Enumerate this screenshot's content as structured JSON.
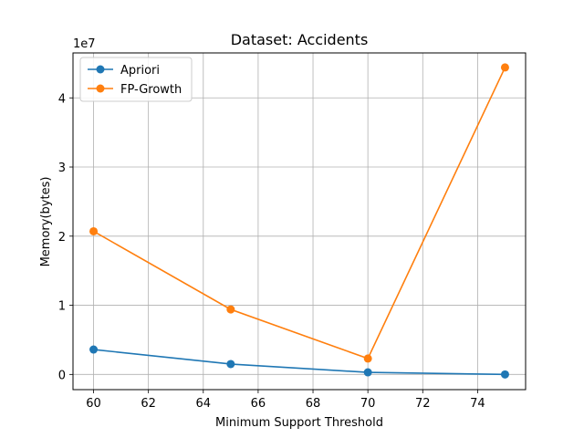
{
  "chart_data": {
    "type": "line",
    "title": "Dataset: Accidents",
    "xlabel": "Minimum Support Threshold",
    "ylabel": "Memory(bytes)",
    "y_offset_label": "1e7",
    "x_ticks": [
      60,
      62,
      64,
      66,
      68,
      70,
      72,
      74
    ],
    "y_ticks": [
      0,
      1,
      2,
      3,
      4
    ],
    "xlim": [
      59.25,
      75.75
    ],
    "ylim": [
      -0.22,
      4.65
    ],
    "y_scale_note": "y values in units of 1e7 bytes",
    "grid": true,
    "legend_position": "top-left",
    "series": [
      {
        "name": "Apriori",
        "color": "#1f77b4",
        "x": [
          60,
          65,
          70,
          75
        ],
        "y": [
          0.36,
          0.15,
          0.03,
          0.0
        ]
      },
      {
        "name": "FP-Growth",
        "color": "#ff7f0e",
        "x": [
          60,
          65,
          70,
          75
        ],
        "y": [
          2.07,
          0.94,
          0.23,
          4.44
        ]
      }
    ]
  }
}
